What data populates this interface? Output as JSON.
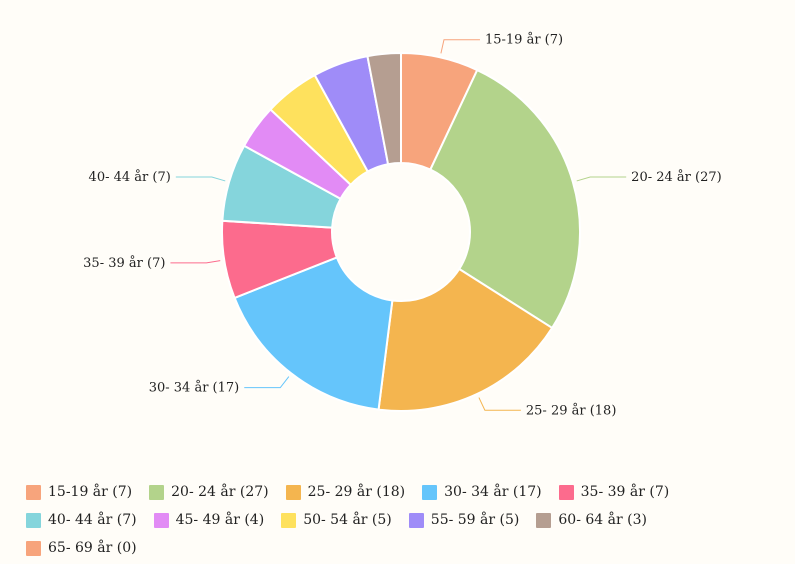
{
  "chart_data": {
    "type": "pie",
    "variant": "donut",
    "title": "",
    "slices": [
      {
        "label": "15-19 år (7)",
        "value": 7,
        "color": "#f7a47c"
      },
      {
        "label": "20- 24 år (27)",
        "value": 27,
        "color": "#b3d38b"
      },
      {
        "label": "25- 29 år (18)",
        "value": 18,
        "color": "#f4b54f"
      },
      {
        "label": "30- 34 år (17)",
        "value": 17,
        "color": "#65c5fb"
      },
      {
        "label": "35- 39 år (7)",
        "value": 7,
        "color": "#fc6b8d"
      },
      {
        "label": "40- 44 år (7)",
        "value": 7,
        "color": "#85d5dc"
      },
      {
        "label": "45- 49 år (4)",
        "value": 4,
        "color": "#e28bf5"
      },
      {
        "label": "50- 54 år (5)",
        "value": 5,
        "color": "#fee15d"
      },
      {
        "label": "55- 59 år (5)",
        "value": 5,
        "color": "#9f8cf8"
      },
      {
        "label": "60- 64 år (3)",
        "value": 3,
        "color": "#b59e91"
      },
      {
        "label": "65- 69 år (0)",
        "value": 0,
        "color": "#f7a47c"
      }
    ],
    "legend": {
      "position": "bottom"
    },
    "labels_shown_for": [
      "15-19 år (7)",
      "20- 24 år (27)",
      "25- 29 år (18)",
      "30- 34 år (17)",
      "35- 39 år (7)",
      "40- 44 år (7)"
    ]
  }
}
